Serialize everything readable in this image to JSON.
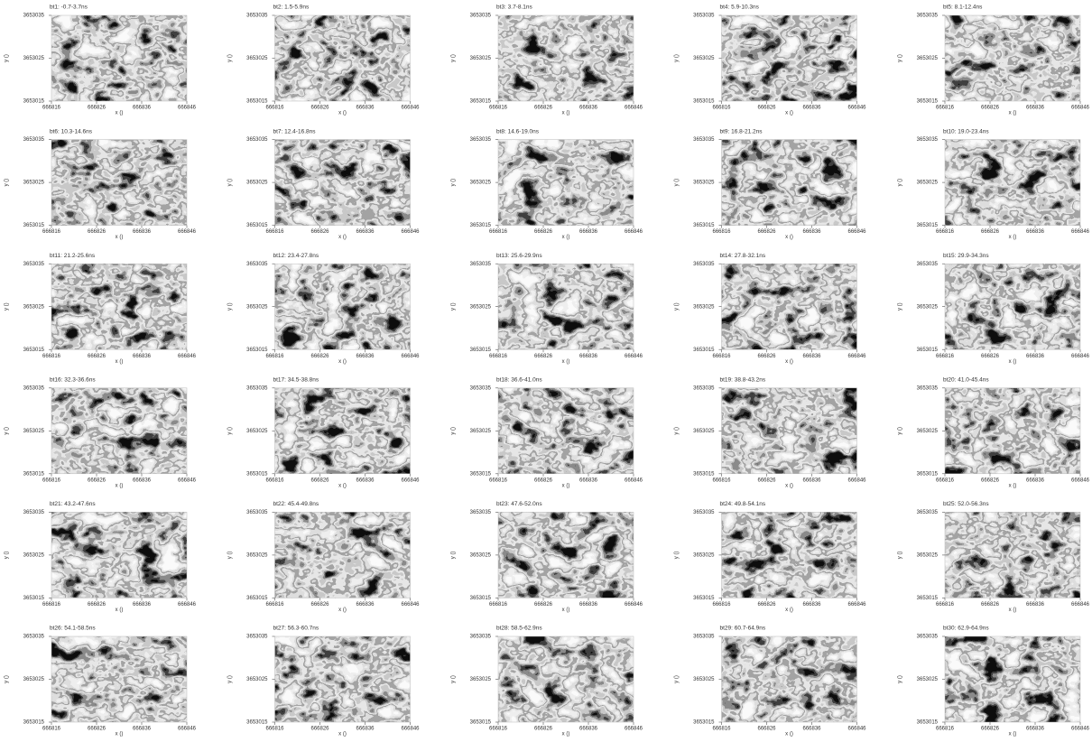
{
  "panels": [
    {
      "title": "bt1: -0.7-3.7ns",
      "xlabel": "x ()",
      "ylabel": "y ()",
      "xticks": [
        666816,
        666826,
        666836,
        666846
      ],
      "yticks": [
        3653035,
        3653025,
        3653015
      ]
    },
    {
      "title": "bt2: 1.5-5.9ns",
      "xlabel": "x ()",
      "ylabel": "y ()",
      "xticks": [
        666816,
        666826,
        666836,
        666846
      ],
      "yticks": [
        3653035,
        3653025,
        3653015
      ]
    },
    {
      "title": "bt3: 3.7-8.1ns",
      "xlabel": "x ()",
      "ylabel": "y ()",
      "xticks": [
        666816,
        666826,
        666836,
        666846
      ],
      "yticks": [
        3653035,
        3653025,
        3653015
      ]
    },
    {
      "title": "bt4: 5.9-10.3ns",
      "xlabel": "x ()",
      "ylabel": "y ()",
      "xticks": [
        666816,
        666826,
        666836,
        666846
      ],
      "yticks": [
        3653035,
        3653025,
        3653015
      ]
    },
    {
      "title": "bt5: 8.1-12.4ns",
      "xlabel": "x ()",
      "ylabel": "y ()",
      "xticks": [
        666816,
        666826,
        666836,
        666846
      ],
      "yticks": [
        3653035,
        3653025,
        3653015
      ]
    },
    {
      "title": "bt6: 10.3-14.6ns",
      "xlabel": "x ()",
      "ylabel": "y ()",
      "xticks": [
        666816,
        666826,
        666836,
        666846
      ],
      "yticks": [
        3653035,
        3653025,
        3653015
      ]
    },
    {
      "title": "bt7: 12.4-16.8ns",
      "xlabel": "x ()",
      "ylabel": "y ()",
      "xticks": [
        666816,
        666826,
        666836,
        666846
      ],
      "yticks": [
        3653035,
        3653025,
        3653015
      ]
    },
    {
      "title": "bt8: 14.6-19.0ns",
      "xlabel": "x ()",
      "ylabel": "y ()",
      "xticks": [
        666816,
        666826,
        666836,
        666846
      ],
      "yticks": [
        3653035,
        3653025,
        3653015
      ]
    },
    {
      "title": "bt9: 16.8-21.2ns",
      "xlabel": "x ()",
      "ylabel": "y ()",
      "xticks": [
        666816,
        666826,
        666836,
        666846
      ],
      "yticks": [
        3653035,
        3653025,
        3653015
      ]
    },
    {
      "title": "bt10: 19.0-23.4ns",
      "xlabel": "x ()",
      "ylabel": "y ()",
      "xticks": [
        666816,
        666826,
        666836,
        666846
      ],
      "yticks": [
        3653035,
        3653025,
        3653015
      ]
    },
    {
      "title": "bt11: 21.2-25.6ns",
      "xlabel": "x ()",
      "ylabel": "y ()",
      "xticks": [
        666816,
        666826,
        666836,
        666846
      ],
      "yticks": [
        3653035,
        3653025,
        3653015
      ]
    },
    {
      "title": "bt12: 23.4-27.8ns",
      "xlabel": "x ()",
      "ylabel": "y ()",
      "xticks": [
        666816,
        666826,
        666836,
        666846
      ],
      "yticks": [
        3653035,
        3653025,
        3653015
      ]
    },
    {
      "title": "bt13: 25.6-29.9ns",
      "xlabel": "x ()",
      "ylabel": "y ()",
      "xticks": [
        666816,
        666826,
        666836,
        666846
      ],
      "yticks": [
        3653035,
        3653025,
        3653015
      ]
    },
    {
      "title": "bt14: 27.8-32.1ns",
      "xlabel": "x ()",
      "ylabel": "y ()",
      "xticks": [
        666816,
        666826,
        666836,
        666846
      ],
      "yticks": [
        3653035,
        3653025,
        3653015
      ]
    },
    {
      "title": "bt15: 29.9-34.3ns",
      "xlabel": "x ()",
      "ylabel": "y ()",
      "xticks": [
        666816,
        666826,
        666836,
        666846
      ],
      "yticks": [
        3653035,
        3653025,
        3653015
      ]
    },
    {
      "title": "bt16: 32.3-36.6ns",
      "xlabel": "x ()",
      "ylabel": "y ()",
      "xticks": [
        666816,
        666826,
        666836,
        666846
      ],
      "yticks": [
        3653035,
        3653025,
        3653015
      ]
    },
    {
      "title": "bt17: 34.5-38.8ns",
      "xlabel": "x ()",
      "ylabel": "y ()",
      "xticks": [
        666816,
        666826,
        666836,
        666846
      ],
      "yticks": [
        3653035,
        3653025,
        3653015
      ]
    },
    {
      "title": "bt18: 36.6-41.0ns",
      "xlabel": "x ()",
      "ylabel": "y ()",
      "xticks": [
        666816,
        666826,
        666836,
        666846
      ],
      "yticks": [
        3653035,
        3653025,
        3653015
      ]
    },
    {
      "title": "bt19: 38.8-43.2ns",
      "xlabel": "x ()",
      "ylabel": "y ()",
      "xticks": [
        666816,
        666826,
        666836,
        666846
      ],
      "yticks": [
        3653035,
        3653025,
        3653015
      ]
    },
    {
      "title": "bt20: 41.0-45.4ns",
      "xlabel": "x ()",
      "ylabel": "y ()",
      "xticks": [
        666816,
        666826,
        666836,
        666846
      ],
      "yticks": [
        3653035,
        3653025,
        3653015
      ]
    },
    {
      "title": "bt21: 43.2-47.6ns",
      "xlabel": "x ()",
      "ylabel": "y ()",
      "xticks": [
        666816,
        666826,
        666836,
        666846
      ],
      "yticks": [
        3653035,
        3653025,
        3653015
      ]
    },
    {
      "title": "bt22: 45.4-49.8ns",
      "xlabel": "x ()",
      "ylabel": "y ()",
      "xticks": [
        666816,
        666826,
        666836,
        666846
      ],
      "yticks": [
        3653035,
        3653025,
        3653015
      ]
    },
    {
      "title": "bt23: 47.6-52.0ns",
      "xlabel": "x ()",
      "ylabel": "y ()",
      "xticks": [
        666816,
        666826,
        666836,
        666846
      ],
      "yticks": [
        3653035,
        3653025,
        3653015
      ]
    },
    {
      "title": "bt24: 49.8-54.1ns",
      "xlabel": "x ()",
      "ylabel": "y ()",
      "xticks": [
        666816,
        666826,
        666836,
        666846
      ],
      "yticks": [
        3653035,
        3653025,
        3653015
      ]
    },
    {
      "title": "bt25: 52.0-56.3ns",
      "xlabel": "x ()",
      "ylabel": "y ()",
      "xticks": [
        666816,
        666826,
        666836,
        666846
      ],
      "yticks": [
        3653035,
        3653025,
        3653015
      ]
    },
    {
      "title": "bt26: 54.1-58.5ns",
      "xlabel": "x ()",
      "ylabel": "y ()",
      "xticks": [
        666816,
        666826,
        666836,
        666846
      ],
      "yticks": [
        3653035,
        3653025,
        3653015
      ]
    },
    {
      "title": "bt27: 56.3-60.7ns",
      "xlabel": "x ()",
      "ylabel": "y ()",
      "xticks": [
        666816,
        666826,
        666836,
        666846
      ],
      "yticks": [
        3653035,
        3653025,
        3653015
      ]
    },
    {
      "title": "bt28: 58.5-62.9ns",
      "xlabel": "x ()",
      "ylabel": "y ()",
      "xticks": [
        666816,
        666826,
        666836,
        666846
      ],
      "yticks": [
        3653035,
        3653025,
        3653015
      ]
    },
    {
      "title": "bt29: 60.7-64.9ns",
      "xlabel": "x ()",
      "ylabel": "y ()",
      "xticks": [
        666816,
        666826,
        666836,
        666846
      ],
      "yticks": [
        3653035,
        3653025,
        3653015
      ]
    },
    {
      "title": "bt30: 62.9-64.9ns",
      "xlabel": "x ()",
      "ylabel": "y ()",
      "xticks": [
        666816,
        666826,
        666836,
        666846
      ],
      "yticks": [
        3653035,
        3653025,
        3653015
      ]
    }
  ]
}
